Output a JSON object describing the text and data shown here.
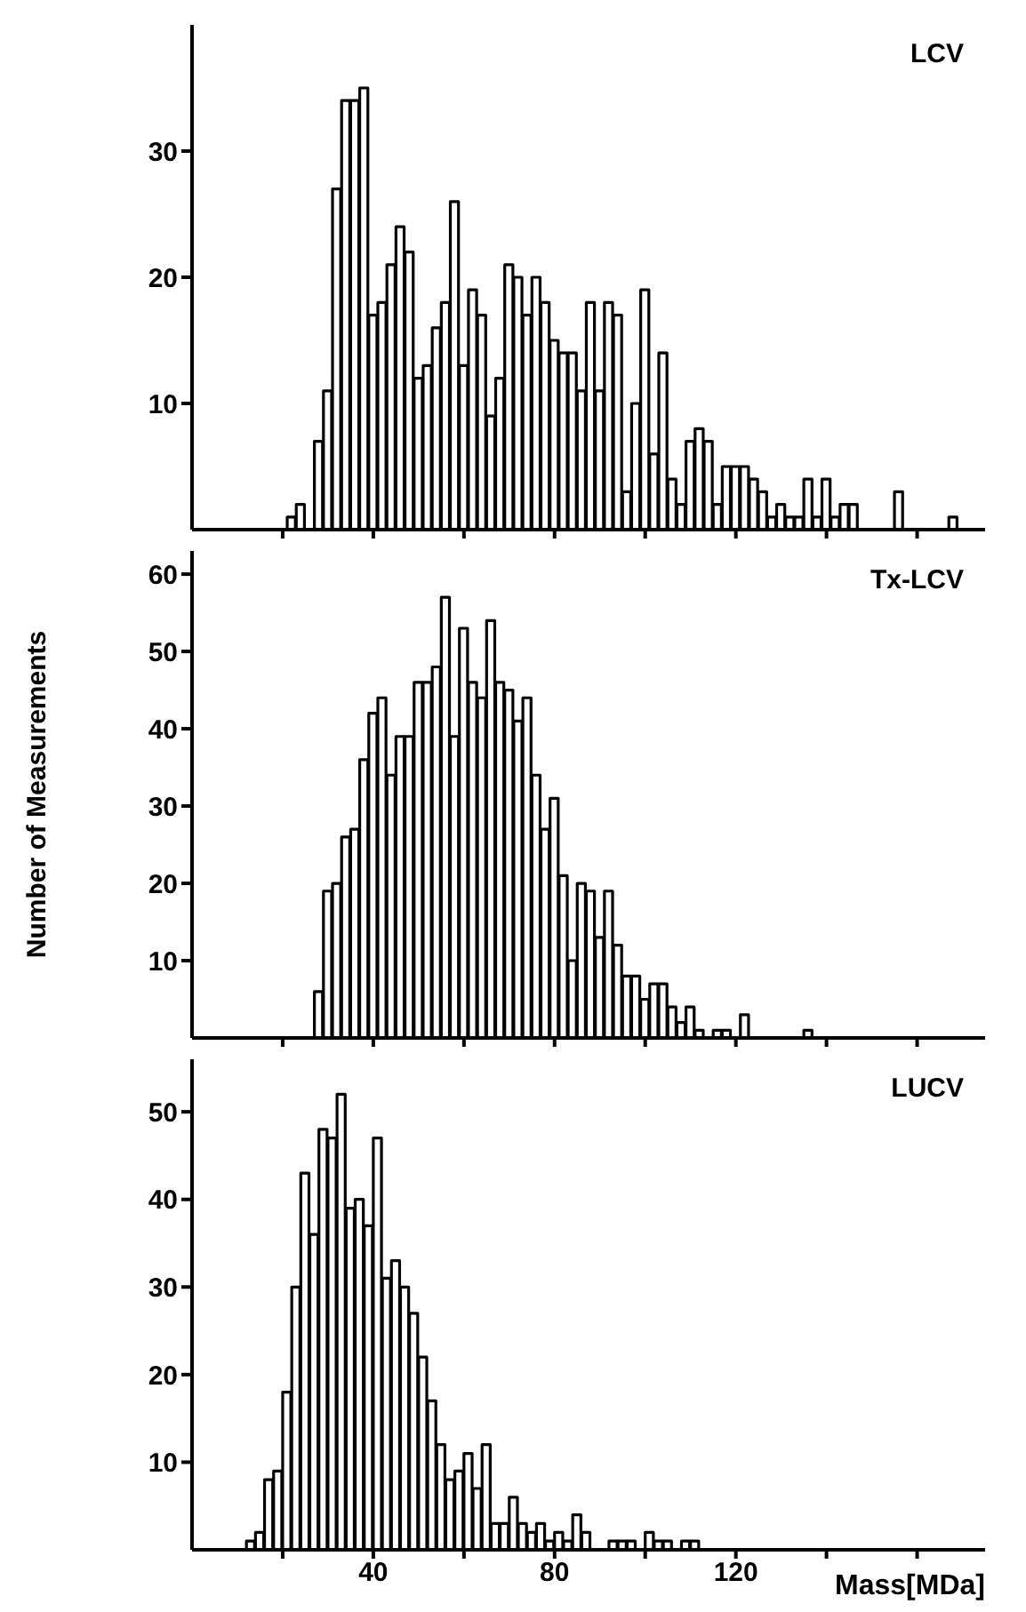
{
  "chart_data": [
    {
      "type": "histogram",
      "title": "LCV",
      "color": "#000000",
      "bins": [
        21,
        23,
        25,
        27,
        29,
        31,
        33,
        35,
        37,
        39,
        41,
        43,
        45,
        47,
        49,
        51,
        53,
        55,
        57,
        59,
        61,
        63,
        65,
        67,
        69,
        71,
        73,
        75,
        77,
        79,
        81,
        83,
        85,
        87,
        89,
        91,
        93,
        95,
        97,
        99,
        101,
        103,
        105,
        107,
        109,
        111,
        113,
        115,
        117,
        119,
        121,
        123,
        125,
        127,
        129,
        131,
        133,
        135,
        137,
        139,
        141,
        143,
        145,
        147,
        149,
        151,
        153,
        155,
        157,
        159,
        161,
        163,
        165,
        167,
        169
      ],
      "values": [
        1,
        2,
        0,
        7,
        11,
        27,
        34,
        34,
        35,
        17,
        18,
        21,
        24,
        22,
        12,
        13,
        16,
        18,
        26,
        13,
        19,
        17,
        9,
        12,
        21,
        20,
        17,
        20,
        18,
        15,
        14,
        14,
        11,
        18,
        11,
        18,
        17,
        3,
        10,
        19,
        6,
        14,
        4,
        2,
        7,
        8,
        7,
        2,
        5,
        5,
        5,
        4,
        3,
        1,
        2,
        1,
        1,
        4,
        1,
        4,
        1,
        2,
        2,
        0,
        0,
        0,
        0,
        3,
        0,
        0,
        0,
        0,
        0,
        1
      ],
      "xlim": [
        0,
        175
      ],
      "xticks": [
        {
          "value": 20,
          "label": null
        },
        {
          "value": 40,
          "label": null
        },
        {
          "value": 60,
          "label": null
        },
        {
          "value": 80,
          "label": null
        },
        {
          "value": 100,
          "label": null
        },
        {
          "value": 120,
          "label": null
        },
        {
          "value": 140,
          "label": null
        },
        {
          "value": 160,
          "label": null
        }
      ],
      "ylim": [
        0,
        40
      ],
      "yticks": [
        10,
        20,
        30
      ],
      "tick_labels": "y"
    },
    {
      "type": "histogram",
      "title": "Tx-LCV",
      "ylabel": "Number of Measurements",
      "color": "#000000",
      "bins": [
        27,
        29,
        31,
        33,
        35,
        37,
        39,
        41,
        43,
        45,
        47,
        49,
        51,
        53,
        55,
        57,
        59,
        61,
        63,
        65,
        67,
        69,
        71,
        73,
        75,
        77,
        79,
        81,
        83,
        85,
        87,
        89,
        91,
        93,
        95,
        97,
        99,
        101,
        103,
        105,
        107,
        109,
        111,
        113,
        115,
        117,
        119,
        121,
        123,
        125,
        127,
        129,
        131,
        133,
        135,
        137
      ],
      "values": [
        6,
        19,
        20,
        26,
        27,
        36,
        42,
        44,
        34,
        39,
        39,
        46,
        46,
        48,
        57,
        39,
        53,
        46,
        44,
        54,
        46,
        45,
        41,
        44,
        34,
        27,
        31,
        21,
        10,
        20,
        19,
        13,
        19,
        12,
        8,
        8,
        5,
        7,
        7,
        4,
        2,
        4,
        1,
        0,
        1,
        1,
        0,
        3,
        0,
        0,
        0,
        0,
        0,
        0,
        1
      ],
      "xlim": [
        0,
        175
      ],
      "xticks": [
        {
          "value": 20,
          "label": null
        },
        {
          "value": 40,
          "label": null
        },
        {
          "value": 60,
          "label": null
        },
        {
          "value": 80,
          "label": null
        },
        {
          "value": 100,
          "label": null
        },
        {
          "value": 120,
          "label": null
        },
        {
          "value": 140,
          "label": null
        },
        {
          "value": 160,
          "label": null
        }
      ],
      "ylim": [
        0,
        63
      ],
      "yticks": [
        10,
        20,
        30,
        40,
        50,
        60
      ],
      "tick_labels": "y"
    },
    {
      "type": "histogram",
      "title": "LUCV",
      "xlabel": "Mass[MDa]",
      "color": "#000000",
      "bins": [
        12,
        14,
        16,
        18,
        20,
        22,
        24,
        26,
        28,
        30,
        32,
        34,
        36,
        38,
        40,
        42,
        44,
        46,
        48,
        50,
        52,
        54,
        56,
        58,
        60,
        62,
        64,
        66,
        68,
        70,
        72,
        74,
        76,
        78,
        80,
        82,
        84,
        86,
        88,
        90,
        92,
        94,
        96,
        98,
        100,
        102,
        104,
        106,
        108,
        110,
        112
      ],
      "values": [
        1,
        2,
        8,
        9,
        18,
        30,
        43,
        36,
        48,
        47,
        52,
        39,
        40,
        37,
        47,
        31,
        33,
        30,
        27,
        22,
        17,
        12,
        8,
        9,
        11,
        7,
        12,
        3,
        3,
        6,
        3,
        2,
        3,
        1,
        2,
        1,
        4,
        2,
        0,
        0,
        1,
        1,
        1,
        0,
        2,
        1,
        1,
        0,
        1,
        1
      ],
      "xlim": [
        0,
        175
      ],
      "xticks": [
        {
          "value": 20,
          "label": null
        },
        40,
        {
          "value": 60,
          "label": null
        },
        80,
        {
          "value": 100,
          "label": null
        },
        120,
        {
          "value": 140,
          "label": null
        },
        {
          "value": 160,
          "label": null
        }
      ],
      "ylim": [
        0,
        56
      ],
      "yticks": [
        10,
        20,
        30,
        40,
        50
      ]
    }
  ]
}
